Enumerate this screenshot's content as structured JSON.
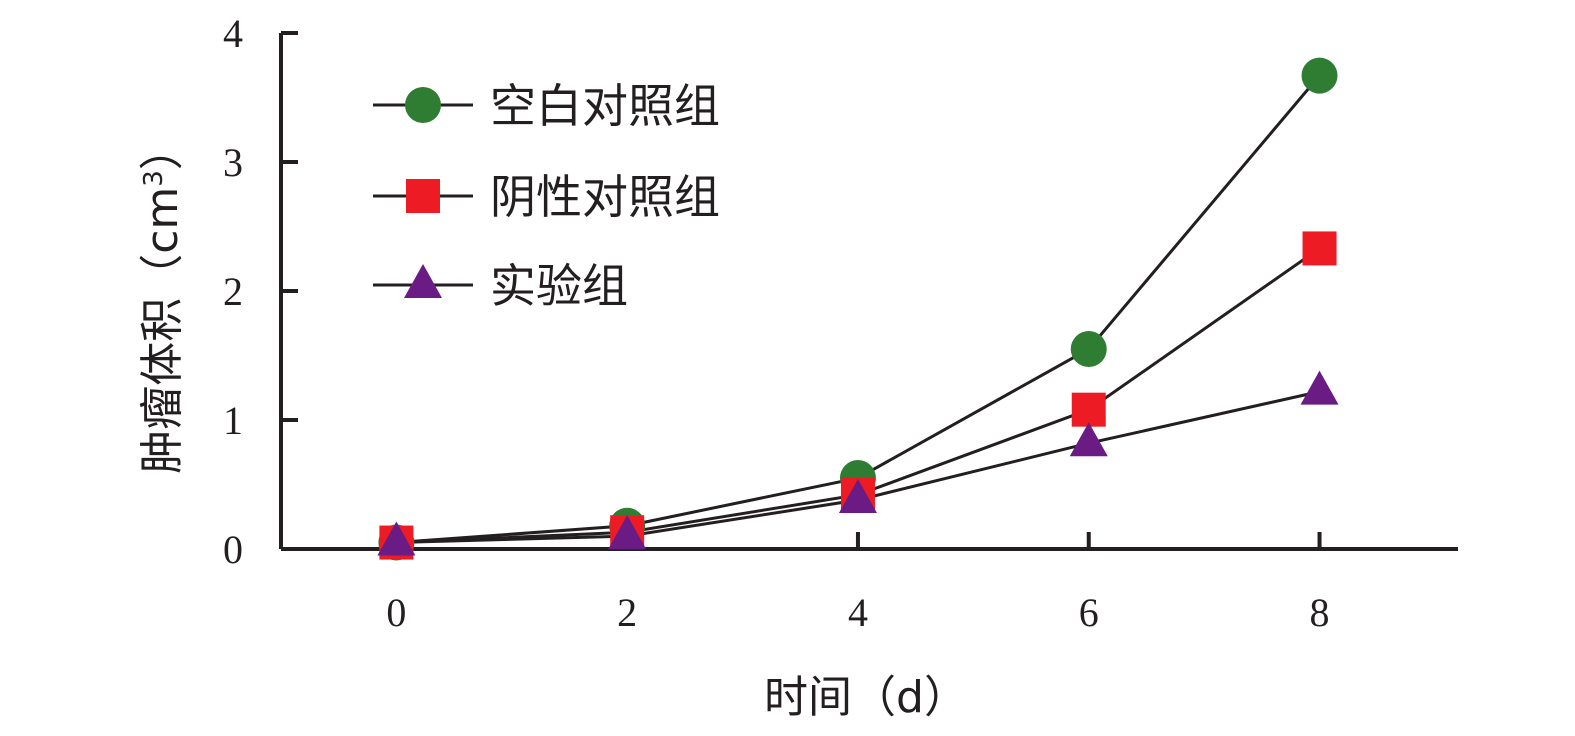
{
  "chart_data": {
    "type": "line",
    "title": "",
    "xlabel": "时间（d）",
    "ylabel": "肿瘤体积（cm3）",
    "ylabel_parts": {
      "main": "肿瘤体积（cm",
      "sup": "3",
      "close": "）"
    },
    "x": [
      0,
      2,
      4,
      6,
      8
    ],
    "xlim": [
      -1,
      9.2
    ],
    "ylim": [
      0,
      4
    ],
    "xticks": [
      0,
      2,
      4,
      6,
      8
    ],
    "yticks": [
      0,
      1,
      2,
      3,
      4
    ],
    "grid": false,
    "legend_position": "top-left",
    "series": [
      {
        "name": "空白对照组",
        "values": [
          0.05,
          0.18,
          0.55,
          1.55,
          3.67
        ],
        "marker": "circle",
        "color": "#2e7d32"
      },
      {
        "name": "阴性对照组",
        "values": [
          0.05,
          0.13,
          0.42,
          1.08,
          2.33
        ],
        "marker": "square",
        "color": "#ed1c24"
      },
      {
        "name": "实验组",
        "values": [
          0.05,
          0.1,
          0.38,
          0.82,
          1.22
        ],
        "marker": "triangle",
        "color": "#6a1b84"
      }
    ]
  }
}
